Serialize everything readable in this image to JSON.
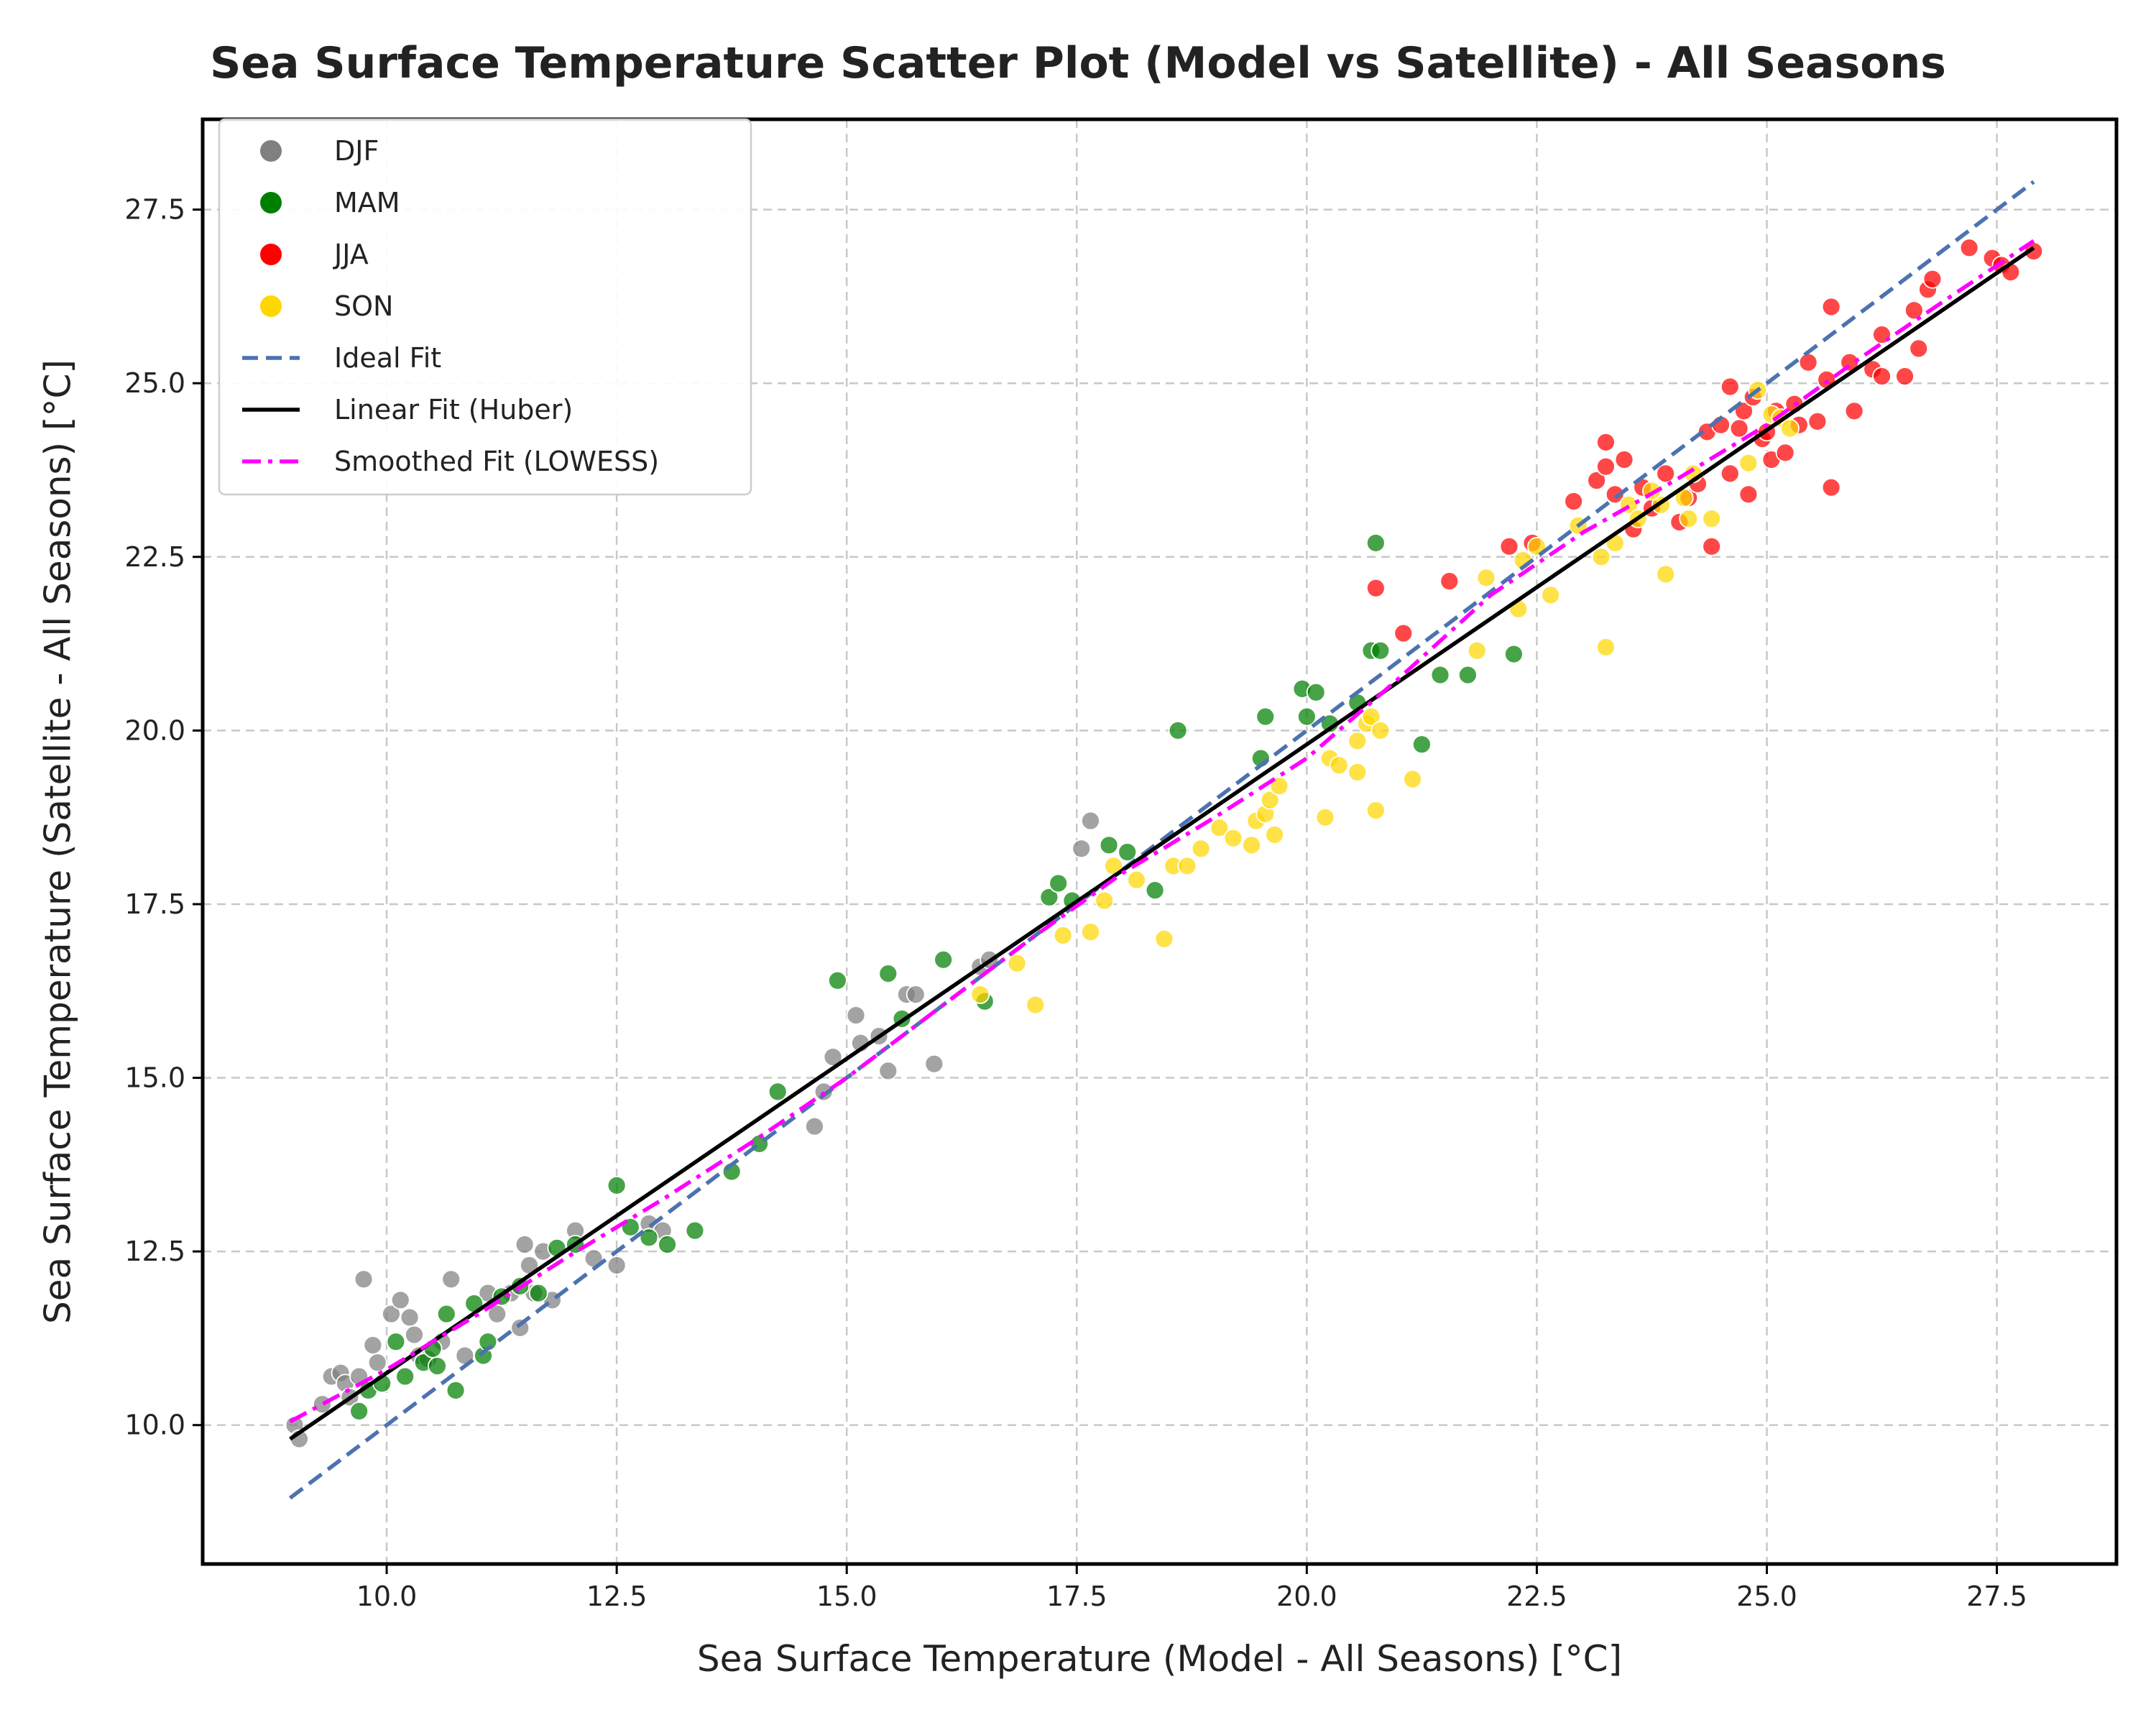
{
  "chart_data": {
    "type": "scatter",
    "title": "Sea Surface Temperature Scatter Plot (Model vs Satellite) - All Seasons",
    "xlabel": "Sea Surface Temperature (Model - All Seasons) [°C]",
    "ylabel": "Sea Surface Temperature (Satellite - All Seasons) [°C]",
    "xlim": [
      8.0,
      28.8
    ],
    "ylim": [
      8.0,
      28.8
    ],
    "xticks": [
      "10.0",
      "12.5",
      "15.0",
      "17.5",
      "20.0",
      "22.5",
      "25.0",
      "27.5"
    ],
    "yticks": [
      "10.0",
      "12.5",
      "15.0",
      "17.5",
      "20.0",
      "22.5",
      "25.0",
      "27.5"
    ],
    "grid": true,
    "legend_position": "top-left",
    "series": [
      {
        "name": "DJF",
        "color": "#808080",
        "points": [
          [
            9.0,
            10.0
          ],
          [
            9.05,
            9.8
          ],
          [
            9.3,
            10.3
          ],
          [
            9.4,
            10.7
          ],
          [
            9.5,
            10.75
          ],
          [
            9.55,
            10.6
          ],
          [
            9.6,
            10.4
          ],
          [
            9.7,
            10.7
          ],
          [
            9.75,
            12.1
          ],
          [
            9.85,
            11.15
          ],
          [
            9.9,
            10.9
          ],
          [
            10.05,
            11.6
          ],
          [
            10.15,
            11.8
          ],
          [
            10.25,
            11.55
          ],
          [
            10.3,
            11.3
          ],
          [
            10.35,
            11.0
          ],
          [
            10.45,
            10.95
          ],
          [
            10.6,
            11.2
          ],
          [
            10.7,
            12.1
          ],
          [
            10.85,
            11.0
          ],
          [
            11.1,
            11.9
          ],
          [
            11.2,
            11.6
          ],
          [
            11.35,
            11.9
          ],
          [
            11.45,
            11.4
          ],
          [
            11.5,
            12.6
          ],
          [
            11.55,
            12.3
          ],
          [
            11.6,
            11.9
          ],
          [
            11.7,
            12.5
          ],
          [
            11.8,
            11.8
          ],
          [
            12.05,
            12.8
          ],
          [
            12.25,
            12.4
          ],
          [
            12.5,
            12.3
          ],
          [
            12.85,
            12.9
          ],
          [
            13.0,
            12.8
          ],
          [
            14.65,
            14.3
          ],
          [
            14.75,
            14.8
          ],
          [
            14.85,
            15.3
          ],
          [
            15.1,
            15.9
          ],
          [
            15.15,
            15.5
          ],
          [
            15.35,
            15.6
          ],
          [
            15.45,
            15.1
          ],
          [
            15.65,
            16.2
          ],
          [
            15.75,
            16.2
          ],
          [
            15.95,
            15.2
          ],
          [
            16.45,
            16.6
          ],
          [
            16.55,
            16.7
          ],
          [
            17.55,
            18.3
          ],
          [
            17.65,
            18.7
          ]
        ]
      },
      {
        "name": "MAM",
        "color": "#008000",
        "points": [
          [
            9.7,
            10.2
          ],
          [
            9.8,
            10.5
          ],
          [
            9.95,
            10.6
          ],
          [
            10.1,
            11.2
          ],
          [
            10.2,
            10.7
          ],
          [
            10.4,
            10.9
          ],
          [
            10.5,
            11.1
          ],
          [
            10.55,
            10.85
          ],
          [
            10.65,
            11.6
          ],
          [
            10.75,
            10.5
          ],
          [
            10.95,
            11.75
          ],
          [
            11.05,
            11.0
          ],
          [
            11.1,
            11.2
          ],
          [
            11.25,
            11.85
          ],
          [
            11.45,
            12.0
          ],
          [
            11.65,
            11.9
          ],
          [
            11.85,
            12.55
          ],
          [
            12.05,
            12.6
          ],
          [
            12.5,
            13.45
          ],
          [
            12.65,
            12.85
          ],
          [
            12.85,
            12.7
          ],
          [
            13.05,
            12.6
          ],
          [
            13.35,
            12.8
          ],
          [
            13.75,
            13.65
          ],
          [
            14.05,
            14.05
          ],
          [
            14.25,
            14.8
          ],
          [
            14.9,
            16.4
          ],
          [
            15.45,
            16.5
          ],
          [
            15.6,
            15.85
          ],
          [
            16.05,
            16.7
          ],
          [
            16.5,
            16.1
          ],
          [
            17.2,
            17.6
          ],
          [
            17.3,
            17.8
          ],
          [
            17.45,
            17.55
          ],
          [
            17.85,
            18.35
          ],
          [
            18.05,
            18.25
          ],
          [
            18.35,
            17.7
          ],
          [
            18.6,
            20.0
          ],
          [
            19.5,
            19.6
          ],
          [
            19.55,
            20.2
          ],
          [
            19.95,
            20.6
          ],
          [
            20.0,
            20.2
          ],
          [
            20.1,
            20.55
          ],
          [
            20.25,
            20.1
          ],
          [
            20.55,
            20.4
          ],
          [
            20.7,
            21.15
          ],
          [
            20.75,
            22.7
          ],
          [
            20.8,
            21.15
          ],
          [
            21.25,
            19.8
          ],
          [
            21.45,
            20.8
          ],
          [
            21.75,
            20.8
          ],
          [
            22.25,
            21.1
          ]
        ]
      },
      {
        "name": "JJA",
        "color": "#ff0000",
        "points": [
          [
            20.75,
            22.05
          ],
          [
            21.05,
            21.4
          ],
          [
            21.55,
            22.15
          ],
          [
            22.2,
            22.65
          ],
          [
            22.45,
            22.7
          ],
          [
            22.9,
            23.3
          ],
          [
            23.15,
            23.6
          ],
          [
            23.25,
            24.15
          ],
          [
            23.25,
            23.8
          ],
          [
            23.35,
            23.4
          ],
          [
            23.45,
            23.9
          ],
          [
            23.55,
            22.9
          ],
          [
            23.65,
            23.5
          ],
          [
            23.75,
            23.2
          ],
          [
            23.9,
            23.7
          ],
          [
            24.05,
            23.0
          ],
          [
            24.15,
            23.35
          ],
          [
            24.25,
            23.55
          ],
          [
            24.35,
            24.3
          ],
          [
            24.4,
            22.65
          ],
          [
            24.5,
            24.4
          ],
          [
            24.6,
            24.95
          ],
          [
            24.7,
            24.35
          ],
          [
            24.75,
            24.6
          ],
          [
            24.8,
            23.4
          ],
          [
            24.85,
            24.8
          ],
          [
            24.95,
            24.2
          ],
          [
            25.05,
            23.9
          ],
          [
            25.1,
            24.6
          ],
          [
            25.2,
            24.0
          ],
          [
            25.3,
            24.7
          ],
          [
            25.35,
            24.4
          ],
          [
            25.45,
            25.3
          ],
          [
            25.55,
            24.45
          ],
          [
            25.65,
            25.05
          ],
          [
            25.7,
            26.1
          ],
          [
            25.7,
            23.5
          ],
          [
            25.95,
            24.6
          ],
          [
            25.9,
            25.3
          ],
          [
            26.15,
            25.2
          ],
          [
            26.25,
            25.1
          ],
          [
            26.25,
            25.7
          ],
          [
            26.5,
            25.1
          ],
          [
            26.6,
            26.05
          ],
          [
            26.65,
            25.5
          ],
          [
            26.75,
            26.35
          ],
          [
            26.8,
            26.5
          ],
          [
            27.2,
            26.95
          ],
          [
            27.45,
            26.8
          ],
          [
            27.55,
            26.7
          ],
          [
            27.65,
            26.6
          ],
          [
            27.9,
            26.9
          ],
          [
            25.0,
            24.3
          ],
          [
            24.6,
            23.7
          ]
        ]
      },
      {
        "name": "SON",
        "color": "#ffd700",
        "points": [
          [
            16.45,
            16.2
          ],
          [
            16.85,
            16.65
          ],
          [
            17.05,
            16.05
          ],
          [
            17.35,
            17.05
          ],
          [
            17.65,
            17.1
          ],
          [
            17.8,
            17.55
          ],
          [
            17.9,
            18.05
          ],
          [
            18.15,
            17.85
          ],
          [
            18.45,
            17.0
          ],
          [
            18.55,
            18.05
          ],
          [
            18.7,
            18.05
          ],
          [
            18.85,
            18.3
          ],
          [
            19.05,
            18.6
          ],
          [
            19.2,
            18.45
          ],
          [
            19.4,
            18.35
          ],
          [
            19.45,
            18.7
          ],
          [
            19.55,
            18.8
          ],
          [
            19.6,
            19.0
          ],
          [
            19.65,
            18.5
          ],
          [
            19.7,
            19.2
          ],
          [
            20.2,
            18.75
          ],
          [
            20.25,
            19.6
          ],
          [
            20.35,
            19.5
          ],
          [
            20.55,
            19.4
          ],
          [
            20.55,
            19.85
          ],
          [
            20.65,
            20.1
          ],
          [
            20.7,
            20.2
          ],
          [
            20.75,
            18.85
          ],
          [
            20.8,
            20.0
          ],
          [
            21.15,
            19.3
          ],
          [
            21.85,
            21.15
          ],
          [
            21.95,
            22.2
          ],
          [
            22.3,
            21.75
          ],
          [
            22.35,
            22.45
          ],
          [
            22.5,
            22.65
          ],
          [
            22.65,
            21.95
          ],
          [
            22.95,
            22.95
          ],
          [
            23.2,
            22.5
          ],
          [
            23.25,
            21.2
          ],
          [
            23.35,
            22.7
          ],
          [
            23.5,
            23.25
          ],
          [
            23.6,
            23.05
          ],
          [
            23.85,
            23.25
          ],
          [
            23.9,
            22.25
          ],
          [
            24.1,
            23.35
          ],
          [
            24.15,
            23.05
          ],
          [
            24.4,
            23.05
          ],
          [
            24.8,
            23.85
          ],
          [
            24.9,
            24.9
          ],
          [
            25.05,
            24.55
          ],
          [
            25.15,
            24.5
          ],
          [
            25.25,
            24.35
          ],
          [
            24.2,
            23.7
          ],
          [
            23.75,
            23.45
          ]
        ]
      }
    ],
    "lines": [
      {
        "name": "Ideal Fit",
        "color": "#4c72b0",
        "style": "dashed",
        "points": [
          [
            8.95,
            8.95
          ],
          [
            27.9,
            27.9
          ]
        ]
      },
      {
        "name": "Linear Fit (Huber)",
        "color": "#000000",
        "style": "solid",
        "points": [
          [
            8.95,
            9.8
          ],
          [
            27.9,
            26.95
          ]
        ]
      },
      {
        "name": "Smoothed Fit (LOWESS)",
        "color": "#ff00ff",
        "style": "dashdot",
        "points": [
          [
            8.95,
            10.05
          ],
          [
            10.0,
            10.8
          ],
          [
            11.0,
            11.6
          ],
          [
            12.0,
            12.45
          ],
          [
            13.0,
            13.25
          ],
          [
            14.0,
            14.1
          ],
          [
            15.0,
            15.0
          ],
          [
            16.0,
            16.0
          ],
          [
            17.0,
            17.0
          ],
          [
            18.0,
            17.95
          ],
          [
            19.0,
            18.75
          ],
          [
            20.0,
            19.6
          ],
          [
            21.0,
            20.75
          ],
          [
            22.0,
            21.95
          ],
          [
            23.0,
            22.85
          ],
          [
            24.0,
            23.6
          ],
          [
            25.0,
            24.4
          ],
          [
            26.0,
            25.35
          ],
          [
            27.0,
            26.25
          ],
          [
            27.9,
            27.05
          ]
        ]
      }
    ]
  }
}
